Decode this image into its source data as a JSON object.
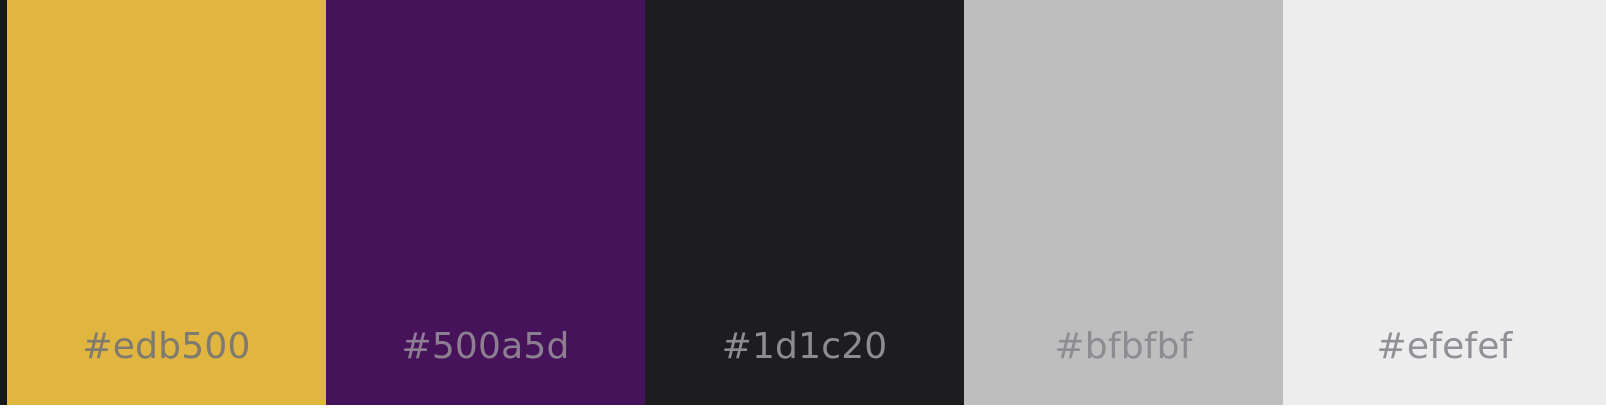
{
  "palette": {
    "swatches": [
      {
        "label": "#edb500",
        "fill": "#e0b540"
      },
      {
        "label": "#500a5d",
        "fill": "#461259"
      },
      {
        "label": "#1d1c20",
        "fill": "#1d1c1f"
      },
      {
        "label": "#bfbfbf",
        "fill": "#bebebe"
      },
      {
        "label": "#efefef",
        "fill": "#ededed"
      }
    ]
  }
}
